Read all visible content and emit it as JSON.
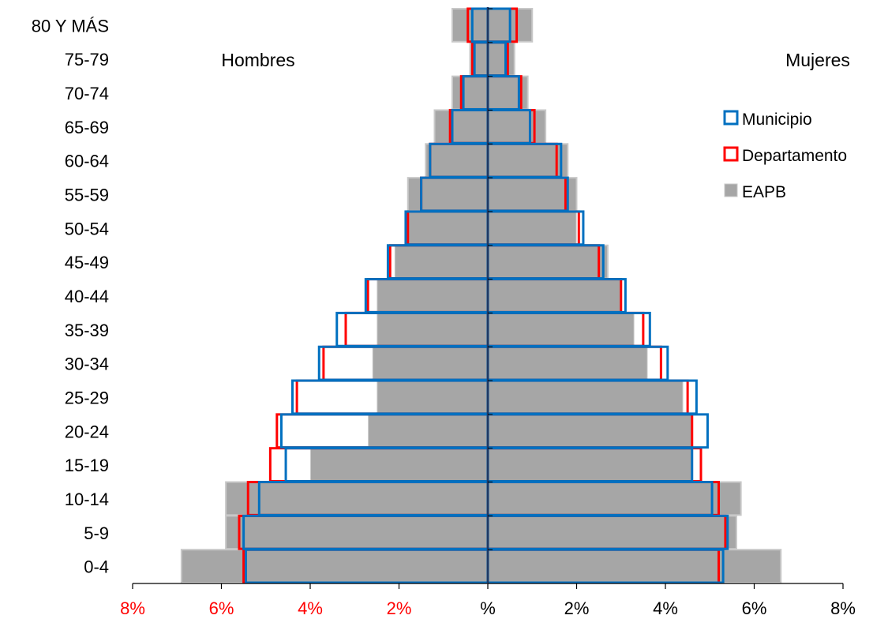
{
  "chart_data": {
    "type": "bar",
    "subtype": "population-pyramid",
    "orientation": "horizontal",
    "categories": [
      "0-4",
      "5-9",
      "10-14",
      "15-19",
      "20-24",
      "25-29",
      "30-34",
      "35-39",
      "40-44",
      "45-49",
      "50-54",
      "55-59",
      "60-64",
      "65-69",
      "70-74",
      "75-79",
      "80 Y MÁS"
    ],
    "left_label": "Hombres",
    "right_label": "Mujeres",
    "x_ticks": [
      "8%",
      "6%",
      "4%",
      "2%",
      "%",
      "2%",
      "4%",
      "6%",
      "8%"
    ],
    "x_range": [
      -8,
      8
    ],
    "series": [
      {
        "name": "EAPB",
        "style": "gray-fill",
        "hombres": [
          6.9,
          5.9,
          5.9,
          4.0,
          2.7,
          2.5,
          2.6,
          2.5,
          2.5,
          2.1,
          1.8,
          1.8,
          1.4,
          1.2,
          0.8,
          0.4,
          0.8
        ],
        "mujeres": [
          6.6,
          5.6,
          5.7,
          4.6,
          4.6,
          4.4,
          3.6,
          3.3,
          3.0,
          2.7,
          2.0,
          2.0,
          1.8,
          1.3,
          0.9,
          0.6,
          1.0
        ]
      },
      {
        "name": "Departamento",
        "style": "red-outline",
        "hombres": [
          5.5,
          5.6,
          5.4,
          4.9,
          4.75,
          4.3,
          3.7,
          3.2,
          2.7,
          2.2,
          1.8,
          1.5,
          1.3,
          0.85,
          0.6,
          0.35,
          0.45
        ],
        "mujeres": [
          5.2,
          5.35,
          5.2,
          4.8,
          4.6,
          4.5,
          3.9,
          3.5,
          3.0,
          2.5,
          2.05,
          1.75,
          1.55,
          1.05,
          0.75,
          0.45,
          0.65
        ]
      },
      {
        "name": "Municipio",
        "style": "blue-outline",
        "hombres": [
          5.45,
          5.5,
          5.15,
          4.55,
          4.65,
          4.4,
          3.8,
          3.4,
          2.75,
          2.25,
          1.85,
          1.5,
          1.3,
          0.8,
          0.55,
          0.3,
          0.35
        ],
        "mujeres": [
          5.3,
          5.4,
          5.05,
          4.6,
          4.95,
          4.7,
          4.05,
          3.65,
          3.1,
          2.6,
          2.15,
          1.8,
          1.65,
          0.95,
          0.7,
          0.4,
          0.5
        ]
      }
    ],
    "legend_items": [
      "Municipio",
      "Departamento",
      "EAPB"
    ],
    "legend_placement": "right",
    "colors": {
      "eapb_fill": "#a6a6a6",
      "eapb_edge": "#c8c8c8",
      "departamento": "#ff0000",
      "municipio": "#0070c0",
      "axis": "#000000",
      "xtick_negative": "#ff0000",
      "xtick_positive": "#000000"
    },
    "grid": false
  }
}
